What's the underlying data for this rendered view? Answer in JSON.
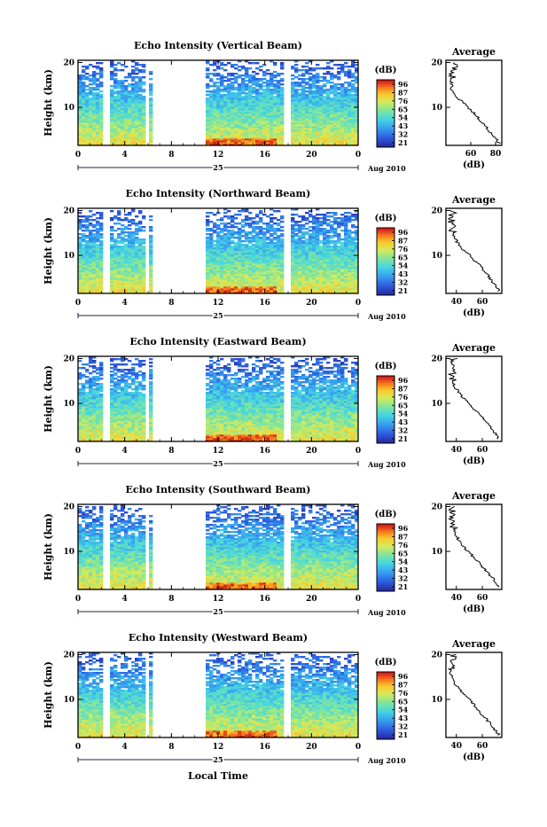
{
  "figure": {
    "xlabel": "Local Time"
  },
  "chart_data": [
    {
      "type": "heatmap",
      "title": "Echo Intensity (Vertical Beam)",
      "ylabel": "Height (km)",
      "x_ticks": [
        "0",
        "4",
        "8",
        "12",
        "16",
        "20",
        "0"
      ],
      "y_ticks": [
        "20",
        "10"
      ],
      "xlim": [
        0,
        24
      ],
      "ylim": [
        1.5,
        20.5
      ],
      "date_day": "25",
      "date_label": "Aug 2010",
      "gaps_hours": [
        [
          2.2,
          2.6
        ],
        [
          5.9,
          6.2
        ],
        [
          6.5,
          11.0
        ],
        [
          17.7,
          18.2
        ]
      ],
      "colorbar": {
        "label": "(dB)",
        "ticks": [
          "96",
          "87",
          "76",
          "65",
          "54",
          "43",
          "32",
          "21"
        ]
      },
      "average": {
        "title": "Average",
        "xlabel": "(dB)",
        "x_ticks": [
          "60",
          "80"
        ],
        "xlim": [
          40,
          85
        ],
        "height_km": [
          2,
          4,
          6,
          8,
          10,
          12,
          14,
          16,
          18,
          20
        ],
        "db": [
          83,
          77,
          71,
          65,
          58,
          50,
          44,
          46,
          44,
          49
        ]
      }
    },
    {
      "type": "heatmap",
      "title": "Echo Intensity (Northward Beam)",
      "ylabel": "Height (km)",
      "x_ticks": [
        "0",
        "4",
        "8",
        "12",
        "16",
        "20",
        "0"
      ],
      "y_ticks": [
        "20",
        "10"
      ],
      "xlim": [
        0,
        24
      ],
      "ylim": [
        1.5,
        20.5
      ],
      "date_day": "25",
      "date_label": "Aug 2010",
      "gaps_hours": [
        [
          2.2,
          2.6
        ],
        [
          5.9,
          6.2
        ],
        [
          6.5,
          11.0
        ],
        [
          17.7,
          18.2
        ]
      ],
      "colorbar": {
        "label": "(dB)",
        "ticks": [
          "96",
          "87",
          "76",
          "65",
          "54",
          "43",
          "32",
          "21"
        ]
      },
      "average": {
        "title": "Average",
        "xlabel": "(dB)",
        "x_ticks": [
          "40",
          "60"
        ],
        "xlim": [
          32,
          75
        ],
        "height_km": [
          2,
          4,
          6,
          8,
          10,
          12,
          14,
          16,
          18,
          20
        ],
        "db": [
          73,
          68,
          63,
          57,
          50,
          43,
          38,
          37,
          36,
          38
        ]
      }
    },
    {
      "type": "heatmap",
      "title": "Echo Intensity (Eastward Beam)",
      "ylabel": "Height (km)",
      "x_ticks": [
        "0",
        "4",
        "8",
        "12",
        "16",
        "20",
        "0"
      ],
      "y_ticks": [
        "20",
        "10"
      ],
      "xlim": [
        0,
        24
      ],
      "ylim": [
        1.5,
        20.5
      ],
      "date_day": "25",
      "date_label": "Aug 2010",
      "gaps_hours": [
        [
          2.2,
          2.6
        ],
        [
          5.9,
          6.2
        ],
        [
          6.5,
          11.0
        ],
        [
          17.7,
          18.2
        ]
      ],
      "colorbar": {
        "label": "(dB)",
        "ticks": [
          "96",
          "87",
          "76",
          "65",
          "54",
          "43",
          "32",
          "21"
        ]
      },
      "average": {
        "title": "Average",
        "xlabel": "(dB)",
        "x_ticks": [
          "40",
          "60"
        ],
        "xlim": [
          32,
          75
        ],
        "height_km": [
          2,
          4,
          6,
          8,
          10,
          12,
          14,
          16,
          18,
          20
        ],
        "db": [
          73,
          68,
          63,
          56,
          50,
          43,
          38,
          37,
          36,
          38
        ]
      }
    },
    {
      "type": "heatmap",
      "title": "Echo Intensity (Southward Beam)",
      "ylabel": "Height (km)",
      "x_ticks": [
        "0",
        "4",
        "8",
        "12",
        "16",
        "20",
        "0"
      ],
      "y_ticks": [
        "20",
        "10"
      ],
      "xlim": [
        0,
        24
      ],
      "ylim": [
        1.5,
        20.5
      ],
      "date_day": "25",
      "date_label": "Aug 2010",
      "gaps_hours": [
        [
          2.2,
          2.6
        ],
        [
          5.9,
          6.2
        ],
        [
          6.5,
          11.0
        ],
        [
          17.7,
          18.2
        ]
      ],
      "colorbar": {
        "label": "(dB)",
        "ticks": [
          "96",
          "87",
          "76",
          "65",
          "54",
          "43",
          "32",
          "21"
        ]
      },
      "average": {
        "title": "Average",
        "xlabel": "(dB)",
        "x_ticks": [
          "40",
          "60"
        ],
        "xlim": [
          32,
          75
        ],
        "height_km": [
          2,
          4,
          6,
          8,
          10,
          12,
          14,
          16,
          18,
          20
        ],
        "db": [
          73,
          68,
          62,
          56,
          49,
          43,
          39,
          38,
          36,
          38
        ]
      }
    },
    {
      "type": "heatmap",
      "title": "Echo Intensity (Westward Beam)",
      "ylabel": "Height (km)",
      "x_ticks": [
        "0",
        "4",
        "8",
        "12",
        "16",
        "20",
        "0"
      ],
      "y_ticks": [
        "20",
        "10"
      ],
      "xlim": [
        0,
        24
      ],
      "ylim": [
        1.5,
        20.5
      ],
      "date_day": "25",
      "date_label": "Aug 2010",
      "gaps_hours": [
        [
          2.2,
          2.6
        ],
        [
          5.9,
          6.2
        ],
        [
          6.5,
          11.0
        ],
        [
          17.7,
          18.2
        ]
      ],
      "colorbar": {
        "label": "(dB)",
        "ticks": [
          "96",
          "87",
          "76",
          "65",
          "54",
          "43",
          "32",
          "21"
        ]
      },
      "average": {
        "title": "Average",
        "xlabel": "(dB)",
        "x_ticks": [
          "40",
          "60"
        ],
        "xlim": [
          32,
          75
        ],
        "height_km": [
          2,
          4,
          6,
          8,
          10,
          12,
          14,
          16,
          18,
          20
        ],
        "db": [
          73,
          68,
          62,
          56,
          50,
          43,
          38,
          37,
          36,
          38
        ]
      }
    }
  ]
}
